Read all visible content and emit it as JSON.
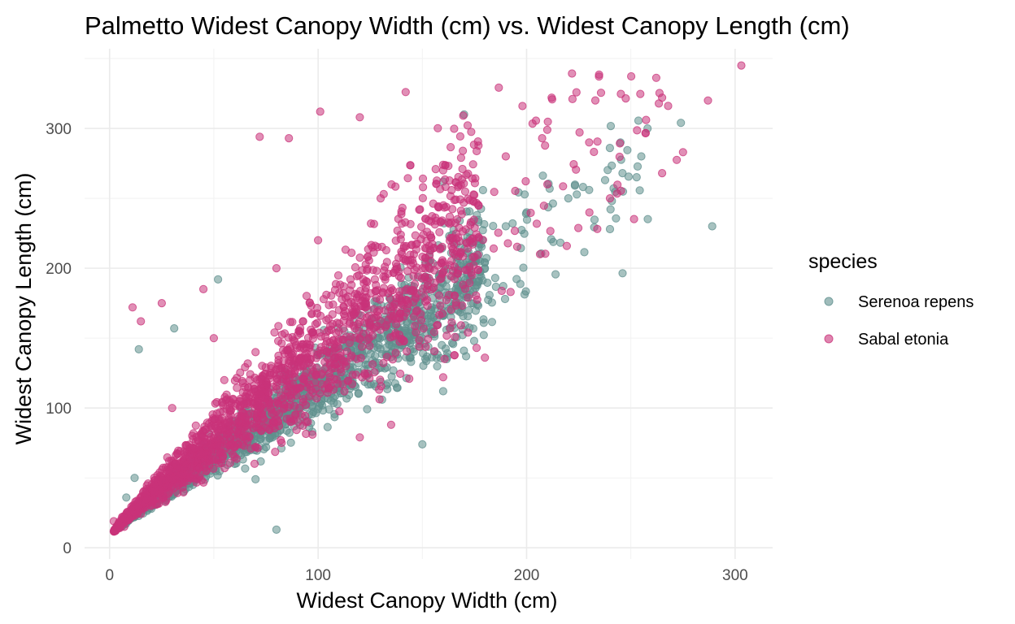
{
  "chart_data": {
    "type": "scatter",
    "title": "Palmetto Widest Canopy Width (cm) vs. Widest Canopy Length (cm)",
    "xlabel": "Widest Canopy Width (cm)",
    "ylabel": "Widest Canopy Length (cm)",
    "xlim": [
      -12,
      318
    ],
    "ylim": [
      -8,
      357
    ],
    "x_ticks": [
      0,
      100,
      200,
      300
    ],
    "y_ticks": [
      0,
      100,
      200,
      300
    ],
    "grid": true,
    "legend": {
      "title": "species",
      "position": "right",
      "entries": [
        "Serenoa repens",
        "Sabal etonia"
      ]
    },
    "series": [
      {
        "name": "Serenoa repens",
        "color": "#5f8f8d",
        "points_sample": [
          [
            14,
            142
          ],
          [
            31,
            157
          ],
          [
            52,
            192
          ],
          [
            70,
            49
          ],
          [
            80,
            13
          ],
          [
            150,
            74
          ],
          [
            160,
            112
          ],
          [
            171,
            137
          ],
          [
            289,
            230
          ],
          [
            160,
            262
          ],
          [
            170,
            310
          ],
          [
            240,
            228
          ],
          [
            258,
            300
          ],
          [
            274,
            304
          ],
          [
            255,
            280
          ],
          [
            246,
            268
          ],
          [
            230,
            256
          ],
          [
            190,
            230
          ],
          [
            130,
            160
          ],
          [
            100,
            115
          ],
          [
            60,
            60
          ],
          [
            40,
            45
          ],
          [
            20,
            28
          ],
          [
            8,
            36
          ],
          [
            12,
            50
          ],
          [
            140,
            175
          ],
          [
            200,
            240
          ],
          [
            220,
            250
          ],
          [
            245,
            290
          ],
          [
            180,
            200
          ],
          [
            110,
            130
          ],
          [
            90,
            100
          ],
          [
            70,
            75
          ],
          [
            50,
            58
          ],
          [
            30,
            38
          ]
        ],
        "trend": {
          "min_ratio": 0.72,
          "max_ratio": 1.7,
          "x_range": [
            5,
            290
          ]
        }
      },
      {
        "name": "Sabal etonia",
        "color": "#c9337a",
        "points_sample": [
          [
            2,
            19
          ],
          [
            7,
            15
          ],
          [
            6,
            22
          ],
          [
            11,
            172
          ],
          [
            15,
            162
          ],
          [
            25,
            175
          ],
          [
            45,
            185
          ],
          [
            72,
            294
          ],
          [
            86,
            293
          ],
          [
            101,
            312
          ],
          [
            142,
            326
          ],
          [
            120,
            308
          ],
          [
            198,
            316
          ],
          [
            212,
            322
          ],
          [
            222,
            321
          ],
          [
            265,
            322
          ],
          [
            287,
            320
          ],
          [
            303,
            345
          ],
          [
            275,
            283
          ],
          [
            265,
            268
          ],
          [
            240,
            250
          ],
          [
            120,
            79
          ],
          [
            135,
            88
          ],
          [
            176,
            143
          ],
          [
            180,
            136
          ],
          [
            160,
            122
          ],
          [
            95,
            90
          ],
          [
            60,
            65
          ],
          [
            40,
            52
          ],
          [
            20,
            30
          ],
          [
            30,
            100
          ],
          [
            50,
            150
          ],
          [
            80,
            200
          ],
          [
            100,
            220
          ],
          [
            130,
            250
          ],
          [
            160,
            270
          ],
          [
            190,
            280
          ],
          [
            210,
            260
          ],
          [
            230,
            290
          ],
          [
            150,
            200
          ],
          [
            110,
            170
          ],
          [
            70,
            140
          ],
          [
            55,
            120
          ]
        ],
        "trend": {
          "min_ratio": 0.75,
          "max_ratio": 2.9,
          "x_range": [
            2,
            304
          ]
        }
      }
    ]
  }
}
